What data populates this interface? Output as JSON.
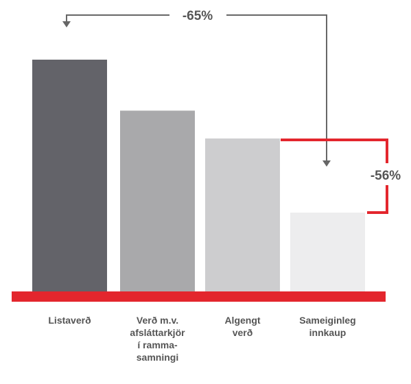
{
  "chart_data": {
    "type": "bar",
    "categories": [
      "Listaverð",
      "Verð m.v.\nafsláttarkjör\ní ramma-\nsamningi",
      "Algengt\nverð",
      "Sameiginleg\ninnkaup"
    ],
    "values": [
      100,
      78,
      66,
      34
    ],
    "colors": [
      "#636369",
      "#a9a9ab",
      "#cdcdcf",
      "#ededee"
    ],
    "annotations": [
      "-65%",
      "-56%"
    ]
  }
}
